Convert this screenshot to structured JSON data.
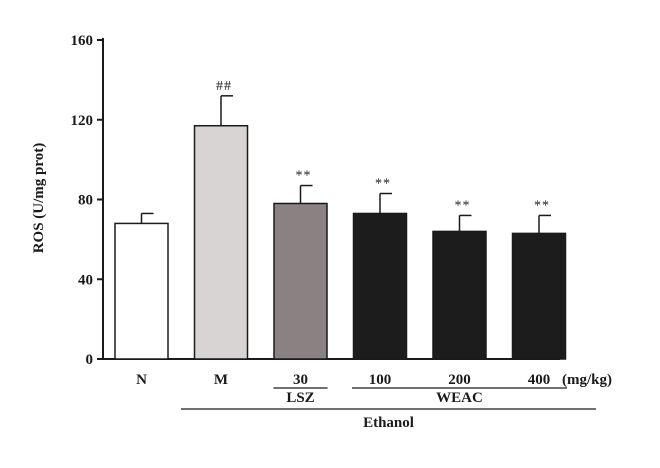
{
  "chart_data": {
    "type": "bar",
    "title": "",
    "ylabel": "ROS (U/mg prot)",
    "xlabel": "",
    "ylim": [
      0,
      160
    ],
    "yticks": [
      0,
      40,
      80,
      120,
      160
    ],
    "categories": [
      "N",
      "M",
      "30",
      "100",
      "200",
      "400"
    ],
    "values": [
      68,
      117,
      78,
      73,
      64,
      63
    ],
    "errors": [
      5,
      15,
      9,
      10,
      8,
      9
    ],
    "significance": [
      "",
      "##",
      "**",
      "**",
      "**",
      "**"
    ],
    "bar_colors": [
      "#ffffff",
      "#d9d4d4",
      "#8a8282",
      "#1c1c1c",
      "#1c1c1c",
      "#1c1c1c"
    ],
    "unit_label": "(mg/kg)",
    "groups": [
      {
        "label": "LSZ",
        "from": 2,
        "to": 2
      },
      {
        "label": "WEAC",
        "from": 3,
        "to": 5
      },
      {
        "label": "Ethanol",
        "from": 1,
        "to": 5
      }
    ],
    "grid": false,
    "legend": "none"
  }
}
